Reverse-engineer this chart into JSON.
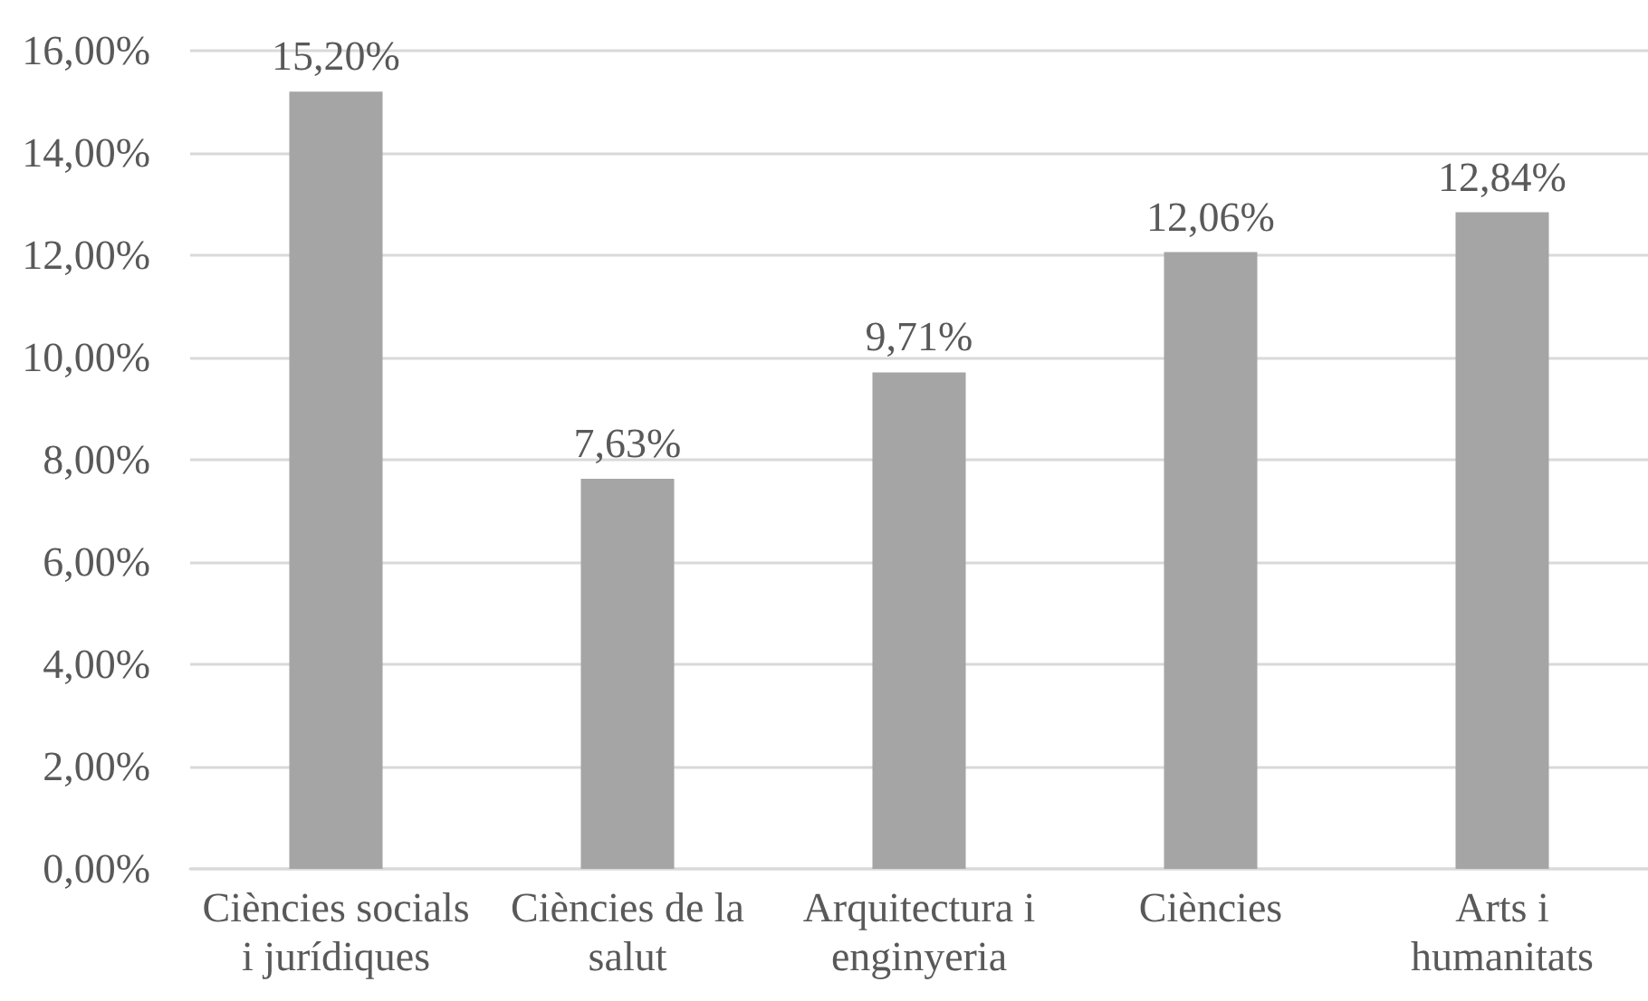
{
  "chart_data": {
    "type": "bar",
    "categories": [
      "Ciències socials i jurídiques",
      "Ciències de la salut",
      "Arquitectura i enginyeria",
      "Ciències",
      "Arts i humanitats"
    ],
    "values": [
      15.2,
      7.63,
      9.71,
      12.06,
      12.84
    ],
    "color": "#a5a5a5",
    "value_labels": [
      "15,20%",
      "7,63%",
      "9,71%",
      "12,06%",
      "12,84%"
    ],
    "ylim": [
      0,
      16
    ],
    "yticks": [
      {
        "value": 0,
        "label": "0,00%"
      },
      {
        "value": 2,
        "label": "2,00%"
      },
      {
        "value": 4,
        "label": "4,00%"
      },
      {
        "value": 6,
        "label": "6,00%"
      },
      {
        "value": 8,
        "label": "8,00%"
      },
      {
        "value": 10,
        "label": "10,00%"
      },
      {
        "value": 12,
        "label": "12,00%"
      },
      {
        "value": 14,
        "label": "14,00%"
      },
      {
        "value": 16,
        "label": "16,00%"
      }
    ],
    "grid": "y"
  }
}
